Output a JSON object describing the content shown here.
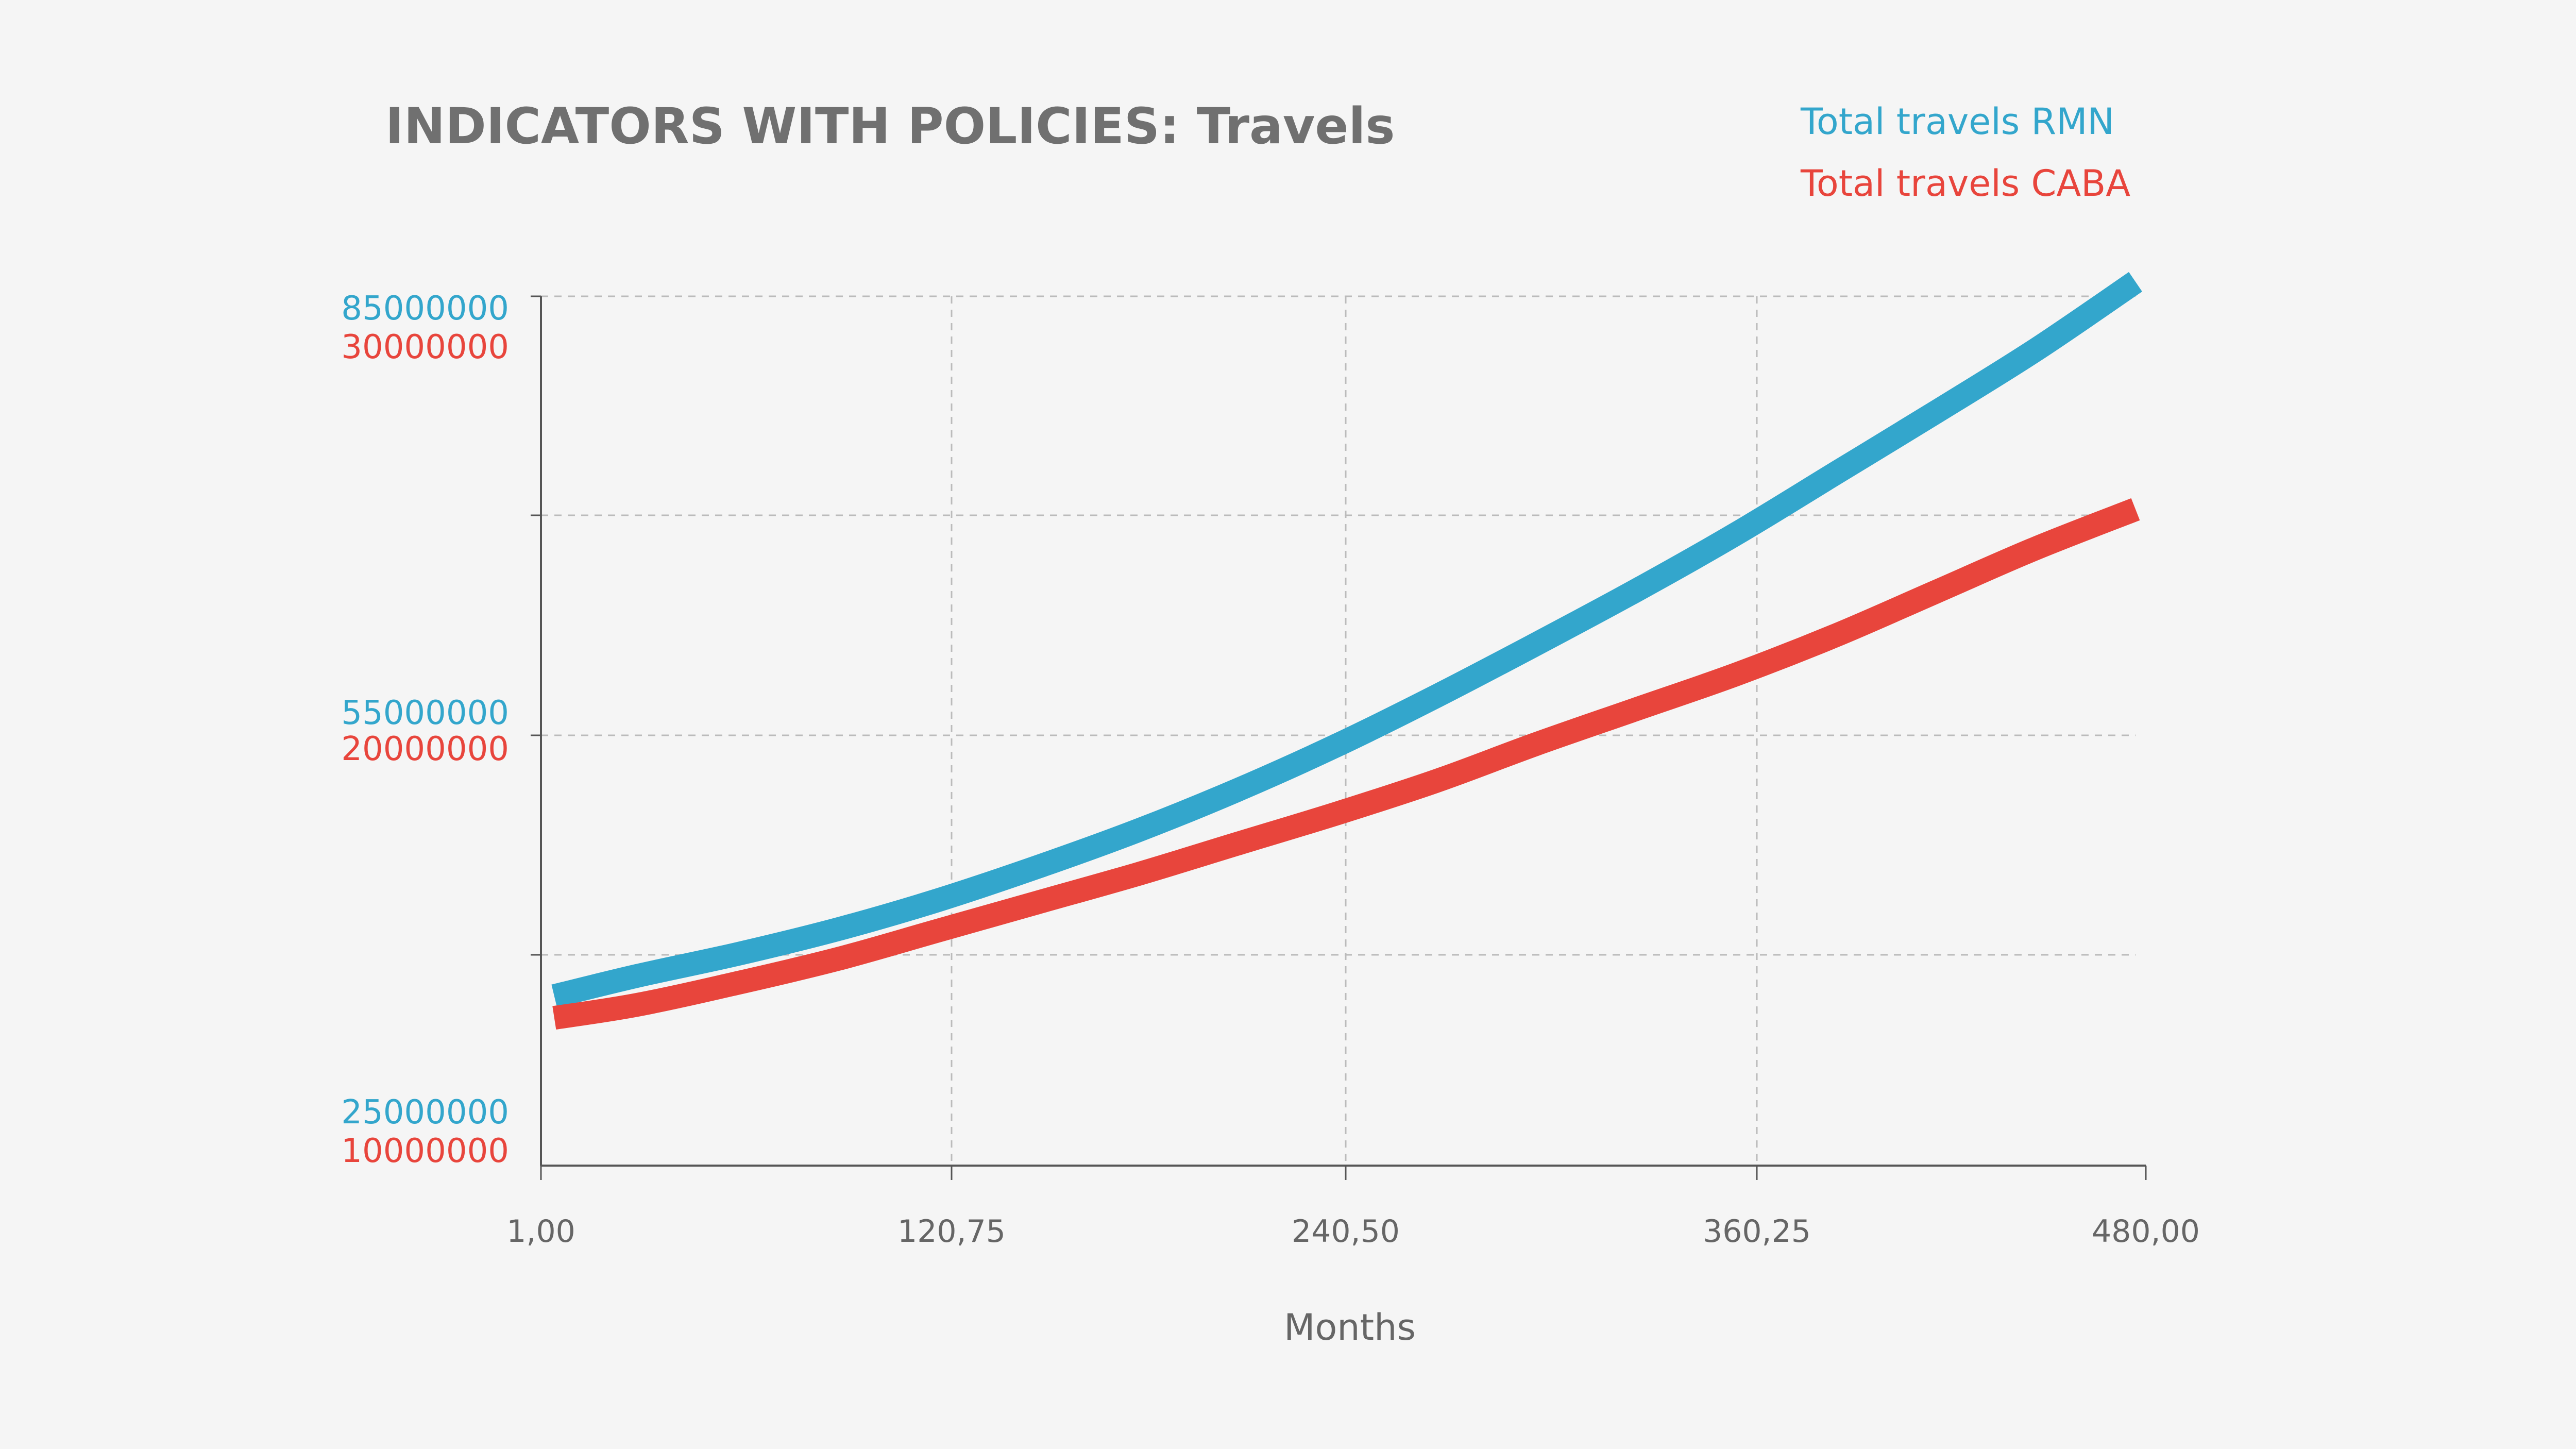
{
  "chart_data": {
    "type": "line",
    "title": "INDICATORS WITH POLICIES: Travels",
    "xlabel": "Months",
    "x_ticks": [
      "1,00",
      "120,75",
      "240,50",
      "360,25",
      "480,00"
    ],
    "xlim": [
      1,
      480
    ],
    "colors": {
      "rmn": "#33a6cc",
      "caba": "#e8453c",
      "text": "#666666",
      "grid": "#bbbbbb",
      "axis": "#555555"
    },
    "axes": [
      {
        "name": "rmn",
        "ylim": [
          25000000,
          85000000
        ],
        "ticks": [
          "85000000",
          "55000000",
          "25000000"
        ]
      },
      {
        "name": "caba",
        "ylim": [
          10000000,
          30000000
        ],
        "ticks": [
          "30000000",
          "20000000",
          "10000000"
        ]
      }
    ],
    "series": [
      {
        "key": "rmn",
        "name": "Total travels RMN",
        "axis": "rmn",
        "x": [
          5,
          30,
          60,
          90,
          120,
          150,
          180,
          210,
          240,
          270,
          300,
          330,
          360,
          390,
          420,
          450,
          480
        ],
        "values": [
          36700000,
          38100000,
          39600000,
          41300000,
          43300000,
          45600000,
          48100000,
          50900000,
          54000000,
          57400000,
          61000000,
          64700000,
          68600000,
          72800000,
          77000000,
          81300000,
          86000000
        ]
      },
      {
        "key": "caba",
        "name": "Total travels CABA",
        "axis": "caba",
        "x": [
          5,
          30,
          60,
          90,
          120,
          150,
          180,
          210,
          240,
          270,
          300,
          330,
          360,
          390,
          420,
          450,
          480
        ],
        "values": [
          13400000,
          13700000,
          14200000,
          14750000,
          15400000,
          16050000,
          16700000,
          17400000,
          18100000,
          18850000,
          19700000,
          20500000,
          21300000,
          22200000,
          23200000,
          24200000,
          25100000
        ]
      }
    ]
  }
}
